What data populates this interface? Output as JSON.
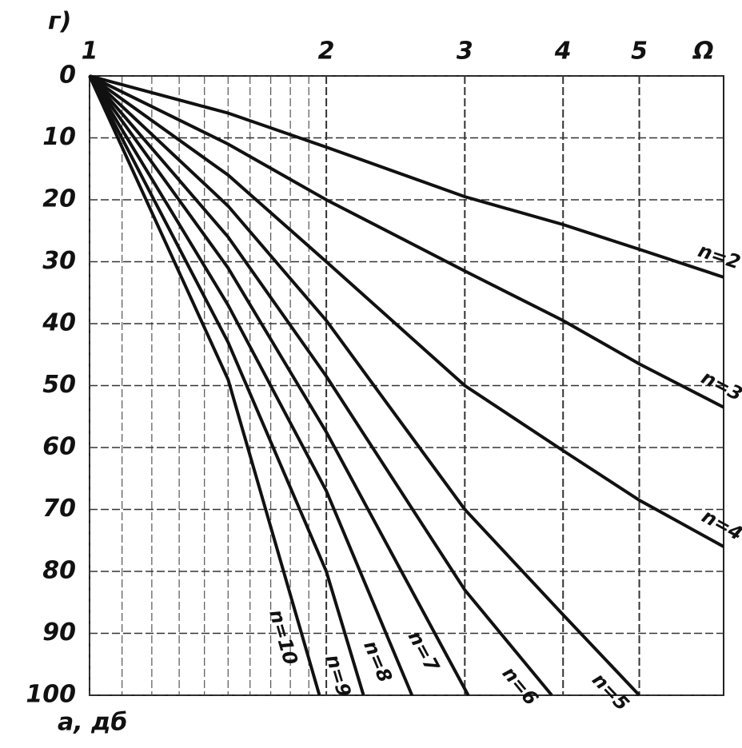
{
  "chart_data": {
    "type": "line",
    "panel_label": "г)",
    "xlabel": "Ω",
    "ylabel": "a, дб",
    "xscale": "log",
    "xlim": [
      1,
      6.4
    ],
    "xticks": [
      1,
      2,
      3,
      4,
      5
    ],
    "xminor": [
      1.1,
      1.2,
      1.3,
      1.4,
      1.5,
      1.6,
      1.7,
      1.8,
      1.9
    ],
    "ylim": [
      0,
      100
    ],
    "yinverted": true,
    "yticks": [
      0,
      10,
      20,
      30,
      40,
      50,
      60,
      70,
      80,
      90,
      100
    ],
    "grid": true,
    "series": [
      {
        "name": "n=2",
        "color": "#111",
        "x": [
          1,
          1.5,
          2,
          3,
          4,
          5,
          6.4
        ],
        "values": [
          0,
          6,
          11.5,
          19.5,
          24,
          28,
          32.5
        ]
      },
      {
        "name": "n=3",
        "color": "#111",
        "x": [
          1,
          1.5,
          2,
          3,
          4,
          5,
          6.4
        ],
        "values": [
          0,
          11,
          20,
          31.5,
          39.5,
          46.5,
          53.5
        ]
      },
      {
        "name": "n=4",
        "color": "#111",
        "x": [
          1,
          1.5,
          2,
          3,
          4,
          5,
          6.4
        ],
        "values": [
          0,
          16,
          30,
          50,
          60.5,
          68.5,
          76
        ]
      },
      {
        "name": "n=5",
        "color": "#111",
        "x": [
          1,
          1.5,
          2,
          3,
          4,
          5
        ],
        "values": [
          0,
          21,
          39.5,
          70,
          87,
          100
        ]
      },
      {
        "name": "n=6",
        "color": "#111",
        "x": [
          1,
          1.5,
          2,
          3,
          3.87
        ],
        "values": [
          0,
          26,
          48.5,
          83,
          100
        ]
      },
      {
        "name": "n=7",
        "color": "#111",
        "x": [
          1,
          1.5,
          2,
          3.03
        ],
        "values": [
          0,
          31,
          57.5,
          100
        ]
      },
      {
        "name": "n=8",
        "color": "#111",
        "x": [
          1,
          1.5,
          2,
          2.57
        ],
        "values": [
          0,
          37,
          67,
          100
        ]
      },
      {
        "name": "n=9",
        "color": "#111",
        "x": [
          1,
          1.5,
          2,
          2.23
        ],
        "values": [
          0,
          43,
          80,
          100
        ]
      },
      {
        "name": "n=10",
        "color": "#111",
        "x": [
          1,
          1.5,
          1.96
        ],
        "values": [
          0,
          49,
          100
        ]
      }
    ]
  }
}
